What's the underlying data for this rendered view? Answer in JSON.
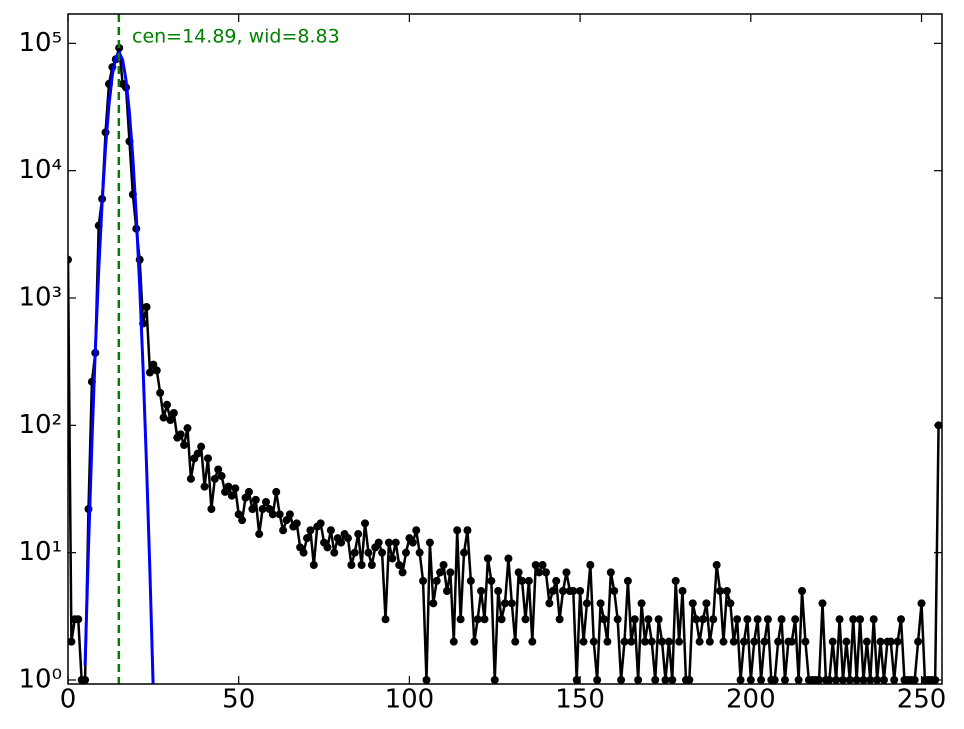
{
  "chart_data": {
    "type": "line",
    "yscale": "log",
    "xlim": [
      0,
      256
    ],
    "ylim": [
      0.93,
      170000
    ],
    "xticks": [
      0,
      50,
      100,
      150,
      200,
      250
    ],
    "yticks": [
      {
        "value": 1,
        "label": "10⁰"
      },
      {
        "value": 10,
        "label": "10¹"
      },
      {
        "value": 100,
        "label": "10²"
      },
      {
        "value": 1000,
        "label": "10³"
      },
      {
        "value": 10000,
        "label": "10⁴"
      },
      {
        "value": 100000,
        "label": "10⁵"
      }
    ],
    "annotation": "cen=14.89, wid=8.83",
    "marker_line": {
      "x": 14.89,
      "color": "#008000"
    },
    "series": [
      {
        "color": "#000000",
        "x": [
          0,
          1,
          2,
          3,
          4,
          5,
          6,
          7,
          8,
          9,
          10,
          11,
          12,
          13,
          14,
          15,
          16,
          17,
          18,
          19,
          20,
          21,
          22,
          23,
          24,
          25,
          26,
          27,
          28,
          29,
          30,
          31,
          32,
          33,
          34,
          35,
          36,
          37,
          38,
          39,
          40,
          41,
          42,
          43,
          44,
          45,
          46,
          47,
          48,
          49,
          50,
          51,
          52,
          53,
          54,
          55,
          56,
          57,
          58,
          59,
          60,
          61,
          62,
          63,
          64,
          65,
          66,
          67,
          68,
          69,
          70,
          71,
          72,
          73,
          74,
          75,
          76,
          77,
          78,
          79,
          80,
          81,
          82,
          83,
          84,
          85,
          86,
          87,
          88,
          89,
          90,
          91,
          92,
          93,
          94,
          95,
          96,
          97,
          98,
          99,
          100,
          101,
          102,
          103,
          104,
          105,
          106,
          107,
          108,
          109,
          110,
          111,
          112,
          113,
          114,
          115,
          116,
          117,
          118,
          119,
          120,
          121,
          122,
          123,
          124,
          125,
          126,
          127,
          128,
          129,
          130,
          131,
          132,
          133,
          134,
          135,
          136,
          137,
          138,
          139,
          140,
          141,
          142,
          143,
          144,
          145,
          146,
          147,
          148,
          149,
          150,
          151,
          152,
          153,
          154,
          155,
          156,
          157,
          158,
          159,
          160,
          161,
          162,
          163,
          164,
          165,
          166,
          167,
          168,
          169,
          170,
          171,
          172,
          173,
          174,
          175,
          176,
          177,
          178,
          179,
          180,
          181,
          182,
          183,
          184,
          185,
          186,
          187,
          188,
          189,
          190,
          191,
          192,
          193,
          194,
          195,
          196,
          197,
          198,
          199,
          200,
          201,
          202,
          203,
          204,
          205,
          206,
          207,
          208,
          209,
          210,
          211,
          212,
          213,
          214,
          215,
          216,
          217,
          218,
          219,
          220,
          221,
          222,
          223,
          224,
          225,
          226,
          227,
          228,
          229,
          230,
          231,
          232,
          233,
          234,
          235,
          236,
          237,
          238,
          239,
          240,
          241,
          242,
          243,
          244,
          245,
          246,
          247,
          248,
          249,
          250,
          251,
          252,
          253,
          254,
          255
        ],
        "values": [
          2000,
          2,
          3,
          3,
          1,
          1,
          22,
          220,
          370,
          3700,
          6000,
          20000,
          48000,
          65000,
          75000,
          92000,
          48000,
          45000,
          17000,
          6500,
          3500,
          2000,
          630,
          850,
          260,
          300,
          270,
          180,
          115,
          145,
          110,
          125,
          80,
          85,
          70,
          95,
          38,
          55,
          60,
          68,
          33,
          55,
          22,
          38,
          45,
          40,
          30,
          33,
          28,
          32,
          20,
          18,
          27,
          30,
          22,
          26,
          14,
          22,
          25,
          22,
          20,
          30,
          20,
          15,
          18,
          20,
          16,
          17,
          11,
          10,
          13,
          15,
          8,
          16,
          17,
          12,
          11,
          15,
          10,
          13,
          12,
          14,
          13,
          8,
          10,
          14,
          8,
          17,
          10,
          8,
          11,
          12,
          10,
          3,
          12,
          9,
          12,
          8,
          7,
          10,
          13,
          12,
          15,
          10,
          6,
          1,
          12,
          4,
          6,
          7,
          8,
          5,
          7,
          2,
          15,
          3,
          10,
          15,
          6,
          2,
          3,
          5,
          3,
          9,
          6,
          1,
          5,
          3,
          4,
          9,
          4,
          2,
          7,
          6,
          3,
          6,
          2,
          8,
          7,
          8,
          7,
          4,
          5,
          6,
          3,
          5,
          7,
          5,
          5,
          1,
          5,
          2,
          4,
          8,
          2,
          1,
          4,
          3,
          2,
          7,
          5,
          3,
          1,
          2,
          6,
          2,
          3,
          1,
          4,
          2,
          3,
          2,
          1,
          3,
          2,
          1,
          2,
          1,
          6,
          2,
          5,
          1,
          1,
          4,
          3,
          2,
          3,
          4,
          2,
          3,
          8,
          5,
          2,
          5,
          4,
          2,
          3,
          1,
          2,
          3,
          1,
          2,
          3,
          1,
          2,
          3,
          1,
          1,
          2,
          3,
          1,
          2,
          2,
          3,
          1,
          5,
          2,
          1,
          1,
          1,
          1,
          4,
          1,
          1,
          2,
          1,
          3,
          1,
          2,
          1,
          3,
          1,
          3,
          1,
          2,
          1,
          3,
          1,
          2,
          1,
          2,
          2,
          1,
          2,
          3,
          1,
          1,
          1,
          1,
          2,
          4,
          1,
          1,
          1,
          1,
          100
        ]
      }
    ],
    "fit": {
      "color": "#0000ff",
      "x": [
        5,
        6,
        7,
        8,
        9,
        10,
        11,
        12,
        13,
        14,
        15,
        16,
        17,
        18,
        19,
        20,
        21,
        22,
        23,
        24,
        25
      ],
      "values": [
        1.3,
        10.9,
        73,
        391,
        1668,
        5650,
        15300,
        33000,
        56700,
        77700,
        85000,
        74000,
        51300,
        28400,
        12500,
        4400,
        1240,
        276,
        49,
        7,
        0.79
      ]
    }
  }
}
